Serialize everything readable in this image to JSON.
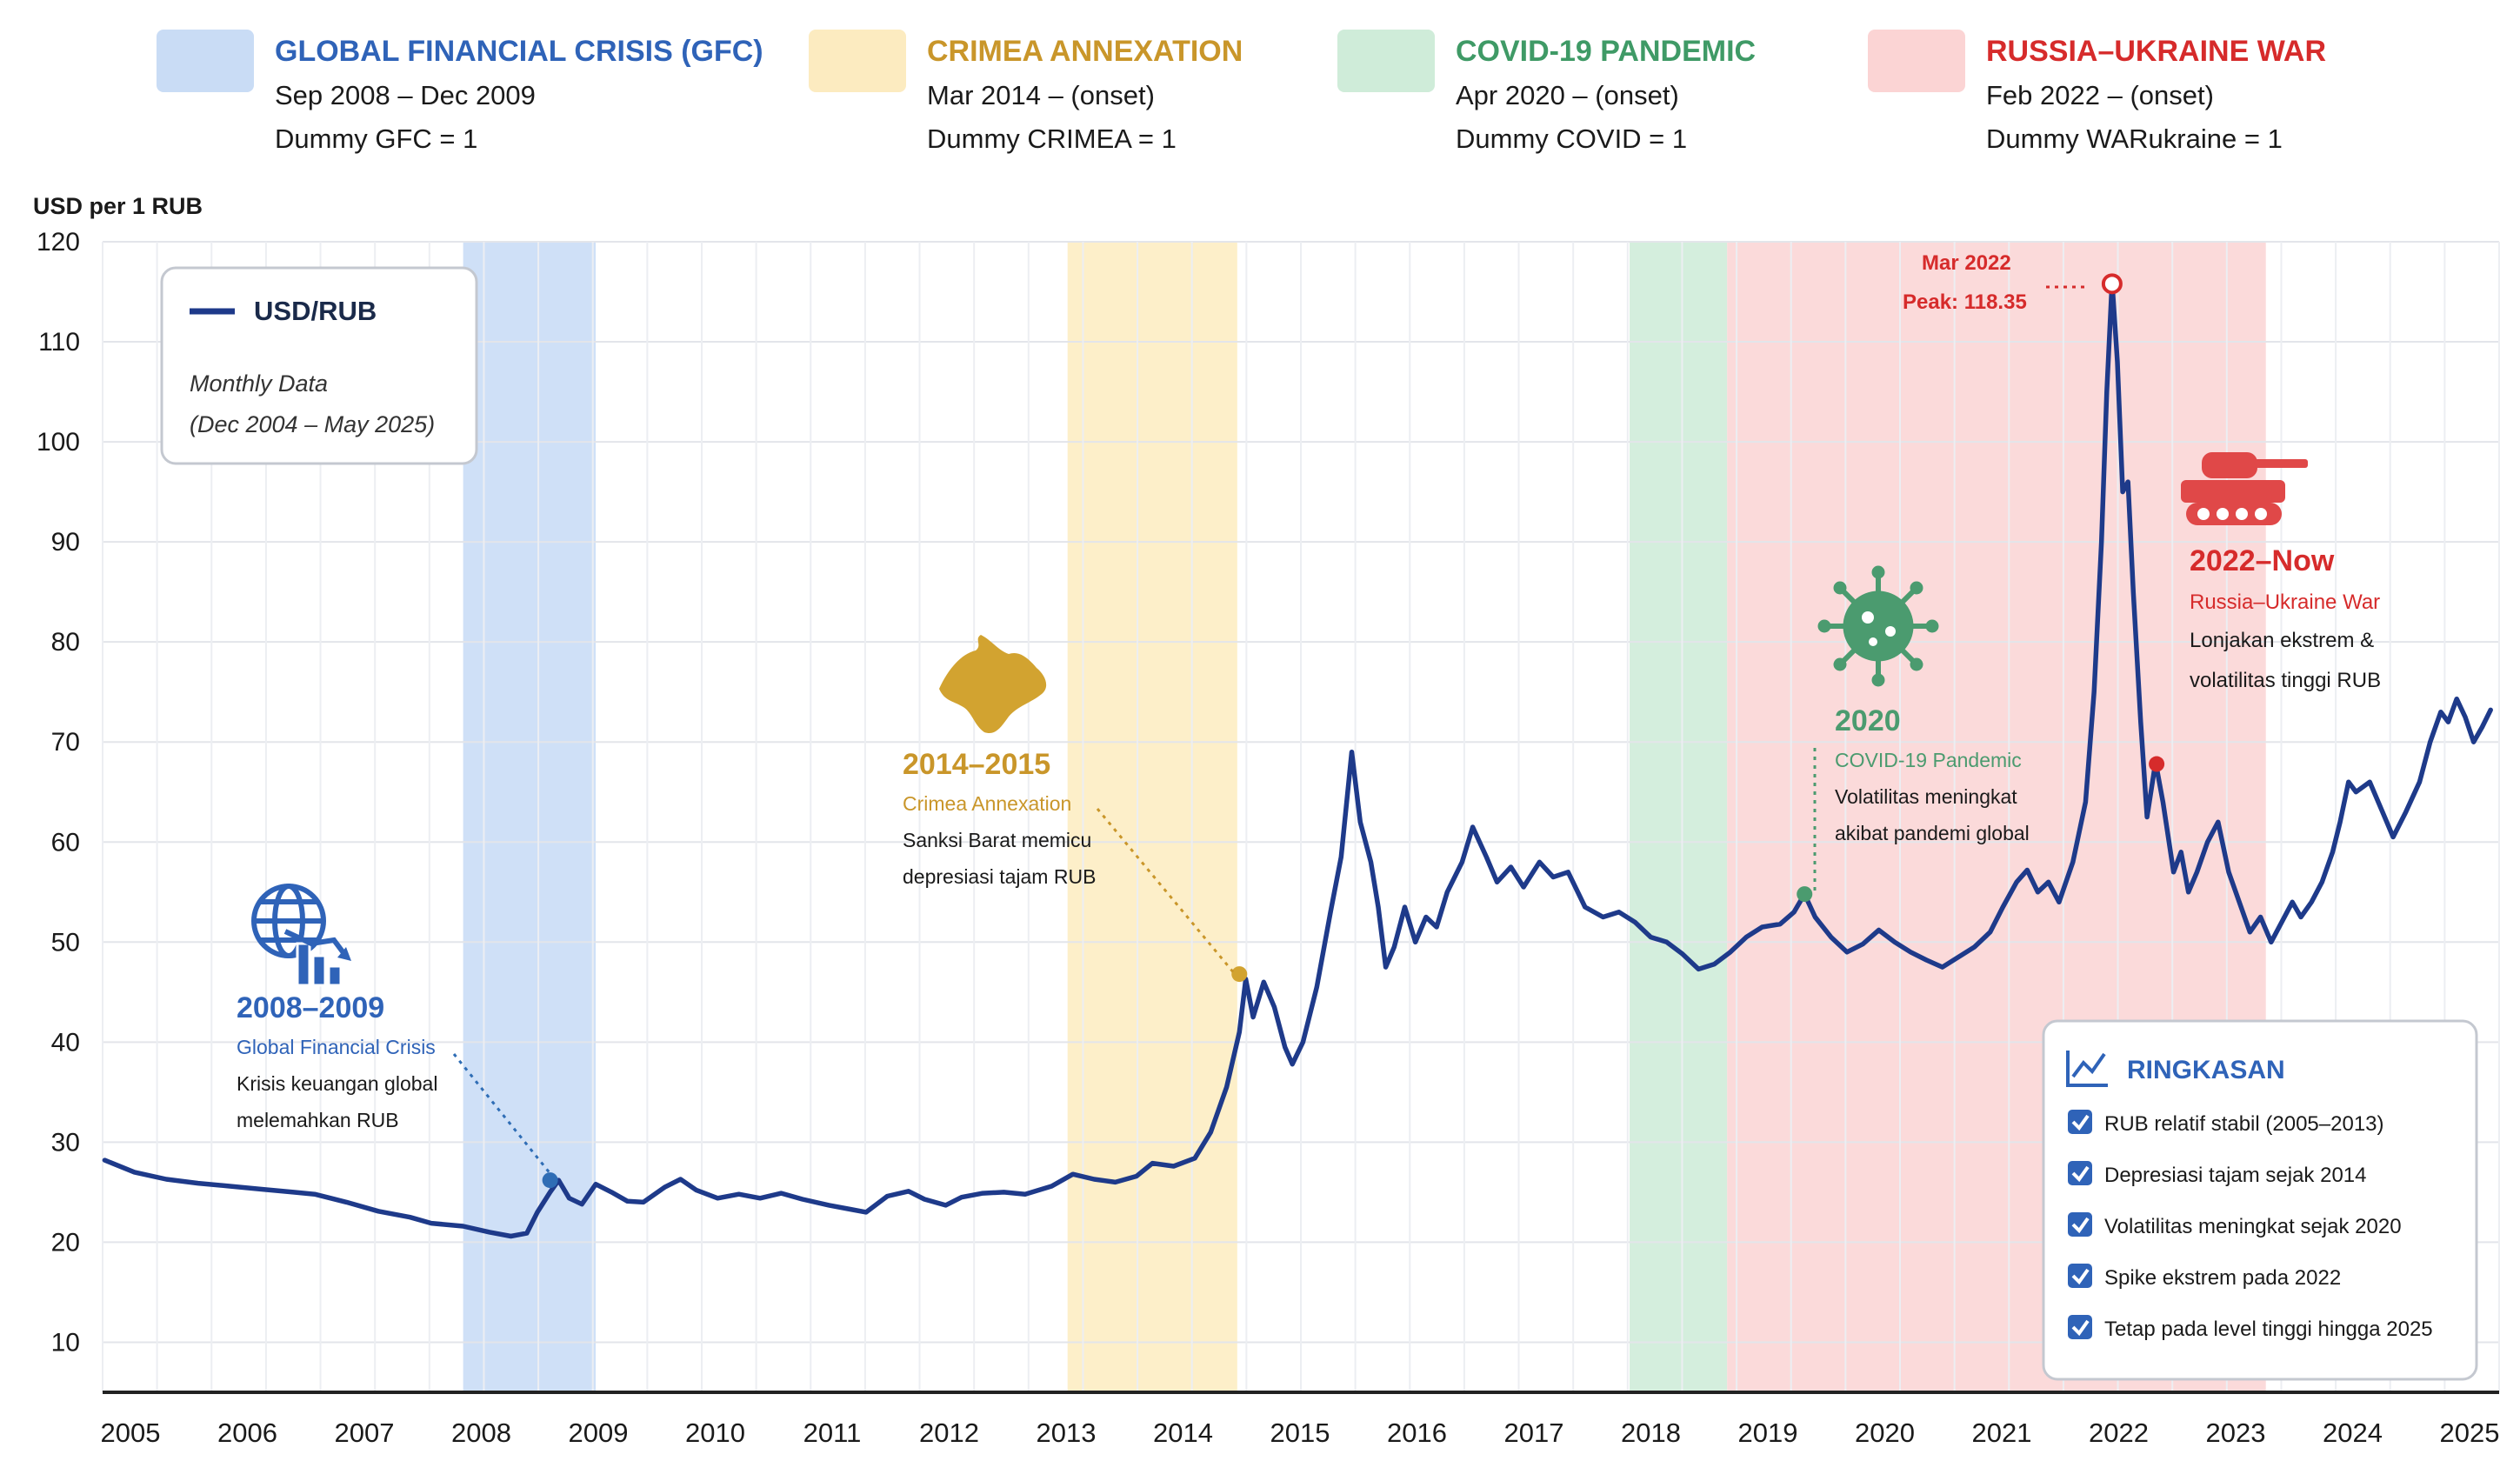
{
  "chart_data": {
    "type": "line",
    "title": "",
    "ylabel": "USD per 1 RUB",
    "xlabel": "",
    "ylim": [
      5,
      120
    ],
    "y_ticks": [
      10,
      20,
      30,
      40,
      50,
      60,
      70,
      80,
      90,
      100,
      110,
      120
    ],
    "x_ticks": [
      "2005",
      "2006",
      "2007",
      "2008",
      "2009",
      "2010",
      "2011",
      "2012",
      "2013",
      "2014",
      "2015",
      "2016",
      "2017",
      "2018",
      "2019",
      "2020",
      "2021",
      "2022",
      "2023",
      "2024",
      "2025"
    ],
    "grid": true,
    "legend": {
      "position": "top-left",
      "series_label": "USD/RUB",
      "note_line1": "Monthly Data",
      "note_line2": "(Dec 2004 – May 2025)"
    },
    "series": [
      {
        "name": "USD/RUB",
        "color": "#1e3a8a",
        "points": [
          [
            2004.92,
            28.2
          ],
          [
            2005.2,
            27.0
          ],
          [
            2005.5,
            26.3
          ],
          [
            2005.8,
            25.9
          ],
          [
            2006.1,
            25.6
          ],
          [
            2006.4,
            25.3
          ],
          [
            2006.7,
            25.0
          ],
          [
            2006.9,
            24.8
          ],
          [
            2007.2,
            24.0
          ],
          [
            2007.5,
            23.1
          ],
          [
            2007.8,
            22.5
          ],
          [
            2008.0,
            21.9
          ],
          [
            2008.3,
            21.6
          ],
          [
            2008.55,
            21.0
          ],
          [
            2008.75,
            20.6
          ],
          [
            2008.9,
            20.9
          ],
          [
            2009.0,
            23.0
          ],
          [
            2009.12,
            25.0
          ],
          [
            2009.2,
            26.2
          ],
          [
            2009.3,
            24.4
          ],
          [
            2009.42,
            23.8
          ],
          [
            2009.55,
            25.8
          ],
          [
            2009.7,
            25.0
          ],
          [
            2009.85,
            24.1
          ],
          [
            2010.0,
            24.0
          ],
          [
            2010.2,
            25.5
          ],
          [
            2010.35,
            26.3
          ],
          [
            2010.5,
            25.2
          ],
          [
            2010.7,
            24.4
          ],
          [
            2010.9,
            24.8
          ],
          [
            2011.1,
            24.4
          ],
          [
            2011.3,
            24.9
          ],
          [
            2011.5,
            24.3
          ],
          [
            2011.75,
            23.7
          ],
          [
            2011.95,
            23.3
          ],
          [
            2012.1,
            23.0
          ],
          [
            2012.3,
            24.6
          ],
          [
            2012.5,
            25.1
          ],
          [
            2012.65,
            24.3
          ],
          [
            2012.85,
            23.7
          ],
          [
            2013.0,
            24.5
          ],
          [
            2013.2,
            24.9
          ],
          [
            2013.4,
            25.0
          ],
          [
            2013.6,
            24.8
          ],
          [
            2013.85,
            25.6
          ],
          [
            2014.05,
            26.8
          ],
          [
            2014.25,
            26.3
          ],
          [
            2014.45,
            26.0
          ],
          [
            2014.65,
            26.6
          ],
          [
            2014.8,
            27.9
          ],
          [
            2015.0,
            27.6
          ],
          [
            2015.2,
            28.4
          ],
          [
            2015.35,
            31.0
          ],
          [
            2015.5,
            35.5
          ],
          [
            2015.62,
            41.0
          ],
          [
            2015.68,
            46.3
          ],
          [
            2015.75,
            42.5
          ],
          [
            2015.85,
            46.0
          ],
          [
            2015.95,
            43.5
          ],
          [
            2016.05,
            39.5
          ],
          [
            2016.12,
            37.8
          ],
          [
            2016.22,
            40.0
          ],
          [
            2016.35,
            45.5
          ],
          [
            2016.48,
            53.0
          ],
          [
            2016.58,
            58.5
          ],
          [
            2016.68,
            69.0
          ],
          [
            2016.76,
            62.0
          ],
          [
            2016.86,
            58.0
          ],
          [
            2016.93,
            53.5
          ],
          [
            2017.0,
            47.5
          ],
          [
            2017.08,
            49.5
          ],
          [
            2017.18,
            53.5
          ],
          [
            2017.28,
            50.0
          ],
          [
            2017.38,
            52.5
          ],
          [
            2017.48,
            51.5
          ],
          [
            2017.58,
            55.0
          ],
          [
            2017.72,
            58.0
          ],
          [
            2017.82,
            61.5
          ],
          [
            2017.95,
            58.5
          ],
          [
            2018.05,
            56.0
          ],
          [
            2018.18,
            57.5
          ],
          [
            2018.3,
            55.5
          ],
          [
            2018.45,
            58.0
          ],
          [
            2018.58,
            56.5
          ],
          [
            2018.72,
            57.0
          ],
          [
            2018.88,
            53.5
          ],
          [
            2019.05,
            52.5
          ],
          [
            2019.2,
            53.0
          ],
          [
            2019.35,
            52.0
          ],
          [
            2019.5,
            50.5
          ],
          [
            2019.65,
            50.0
          ],
          [
            2019.8,
            48.8
          ],
          [
            2019.95,
            47.3
          ],
          [
            2020.1,
            47.8
          ],
          [
            2020.25,
            49.0
          ],
          [
            2020.4,
            50.5
          ],
          [
            2020.55,
            51.5
          ],
          [
            2020.72,
            51.8
          ],
          [
            2020.85,
            53.0
          ],
          [
            2020.95,
            54.8
          ],
          [
            2021.05,
            52.5
          ],
          [
            2021.2,
            50.5
          ],
          [
            2021.35,
            49.0
          ],
          [
            2021.5,
            49.8
          ],
          [
            2021.65,
            51.2
          ],
          [
            2021.8,
            50.0
          ],
          [
            2021.95,
            49.0
          ],
          [
            2022.1,
            48.2
          ],
          [
            2022.25,
            47.5
          ],
          [
            2022.4,
            48.5
          ],
          [
            2022.55,
            49.5
          ],
          [
            2022.7,
            51.0
          ],
          [
            2022.82,
            53.5
          ],
          [
            2022.95,
            56.0
          ],
          [
            2023.05,
            57.2
          ],
          [
            2023.15,
            55.0
          ],
          [
            2023.25,
            56.0
          ],
          [
            2023.35,
            54.0
          ],
          [
            2023.48,
            58.0
          ],
          [
            2023.6,
            64.0
          ],
          [
            2023.68,
            75.0
          ],
          [
            2023.75,
            90.0
          ],
          [
            2023.8,
            105.0
          ],
          [
            2023.85,
            116.0
          ],
          [
            2023.9,
            108.0
          ],
          [
            2023.95,
            95.0
          ],
          [
            2024.0,
            96.0
          ],
          [
            2024.05,
            85.0
          ],
          [
            2024.12,
            72.0
          ],
          [
            2024.18,
            62.5
          ],
          [
            2024.26,
            68.0
          ],
          [
            2024.33,
            64.0
          ],
          [
            2024.43,
            57.0
          ],
          [
            2024.5,
            59.0
          ],
          [
            2024.57,
            55.0
          ],
          [
            2024.65,
            57.0
          ],
          [
            2024.75,
            60.0
          ],
          [
            2024.85,
            62.0
          ],
          [
            2024.95,
            57.0
          ],
          [
            2025.05,
            54.0
          ],
          [
            2025.15,
            51.0
          ],
          [
            2025.25,
            52.5
          ],
          [
            2025.35,
            50.0
          ],
          [
            2025.45,
            52.0
          ],
          [
            2025.55,
            54.0
          ],
          [
            2025.63,
            52.5
          ],
          [
            2025.73,
            54.0
          ],
          [
            2025.83,
            56.0
          ],
          [
            2025.93,
            59.0
          ],
          [
            2026.0,
            62.0
          ],
          [
            2026.08,
            66.0
          ],
          [
            2026.15,
            65.0
          ],
          [
            2026.28,
            66.0
          ],
          [
            2026.4,
            63.0
          ],
          [
            2026.5,
            60.5
          ],
          [
            2026.62,
            63.0
          ],
          [
            2026.75,
            66.0
          ],
          [
            2026.85,
            70.0
          ],
          [
            2026.95,
            73.0
          ],
          [
            2027.02,
            72.0
          ],
          [
            2027.1,
            74.3
          ],
          [
            2027.18,
            72.5
          ],
          [
            2027.26,
            70.0
          ],
          [
            2027.34,
            71.5
          ],
          [
            2027.42,
            73.2
          ]
        ]
      }
    ],
    "shaded_periods": [
      {
        "name": "GFC",
        "x0": 2008.3,
        "x1": 2009.55,
        "color": "#cfe0f7"
      },
      {
        "name": "CRIMEA",
        "x0": 2014.0,
        "x1": 2015.6,
        "color": "#fdefc9"
      },
      {
        "name": "COVID",
        "x0": 2019.3,
        "x1": 2020.22,
        "color": "#d4eedd"
      },
      {
        "name": "WAR",
        "x0": 2020.22,
        "x1": 2025.3,
        "color": "#fbdada"
      }
    ],
    "markers": [
      {
        "x": 2009.12,
        "y": 26.2,
        "color": "#2f6db5"
      },
      {
        "x": 2015.62,
        "y": 46.8,
        "color": "#d2a330"
      },
      {
        "x": 2020.95,
        "y": 54.8,
        "color": "#4b9b6f"
      },
      {
        "x": 2023.85,
        "y": 115.8,
        "color": "#d62b2b",
        "ring": true
      },
      {
        "x": 2024.27,
        "y": 67.8,
        "color": "#d62b2b"
      }
    ]
  },
  "events": [
    {
      "title": "GLOBAL FINANCIAL CRISIS (GFC)",
      "line1": "Sep 2008 – Dec 2009",
      "line2": "Dummy GFC = 1",
      "swatch": "#c9dcf5",
      "color": "#2f63b8"
    },
    {
      "title": "CRIMEA ANNEXATION",
      "line1": "Mar 2014 – (onset)",
      "line2": "Dummy CRIMEA = 1",
      "swatch": "#fcebc0",
      "color": "#c9962a"
    },
    {
      "title": "COVID-19 PANDEMIC",
      "line1": "Apr 2020 – (onset)",
      "line2": "Dummy COVID = 1",
      "swatch": "#cfecd9",
      "color": "#3f9a66"
    },
    {
      "title": "RUSSIA–UKRAINE WAR",
      "line1": "Feb 2022 – (onset)",
      "line2": "Dummy WARukraine = 1",
      "swatch": "#fbd4d4",
      "color": "#d62b2b"
    }
  ],
  "annotations": {
    "gfc": {
      "period": "2008–2009",
      "subtitle": "Global Financial Crisis",
      "line1": "Krisis keuangan global",
      "line2": "melemahkan RUB"
    },
    "crimea": {
      "period": "2014–2015",
      "subtitle": "Crimea Annexation",
      "line1": "Sanksi Barat memicu",
      "line2": "depresiasi tajam RUB"
    },
    "covid": {
      "period": "2020",
      "subtitle": "COVID-19 Pandemic",
      "line1": "Volatilitas meningkat",
      "line2": "akibat pandemi global"
    },
    "war": {
      "period": "2022–Now",
      "subtitle": "Russia–Ukraine War",
      "line1": "Lonjakan ekstrem &",
      "line2": "volatilitas tinggi RUB"
    },
    "peak": {
      "line1": "Mar 2022",
      "line2": "Peak: 118.35"
    }
  },
  "summary": {
    "title": "RINGKASAN",
    "items": [
      "RUB relatif stabil (2005–2013)",
      "Depresiasi tajam sejak 2014",
      "Volatilitas meningkat sejak 2020",
      "Spike ekstrem pada 2022",
      "Tetap pada level tinggi hingga 2025"
    ]
  },
  "icons": [
    "globe-chart-icon",
    "crimea-map-icon",
    "virus-icon",
    "tank-icon",
    "line-chart-icon",
    "checkbox-icon"
  ]
}
